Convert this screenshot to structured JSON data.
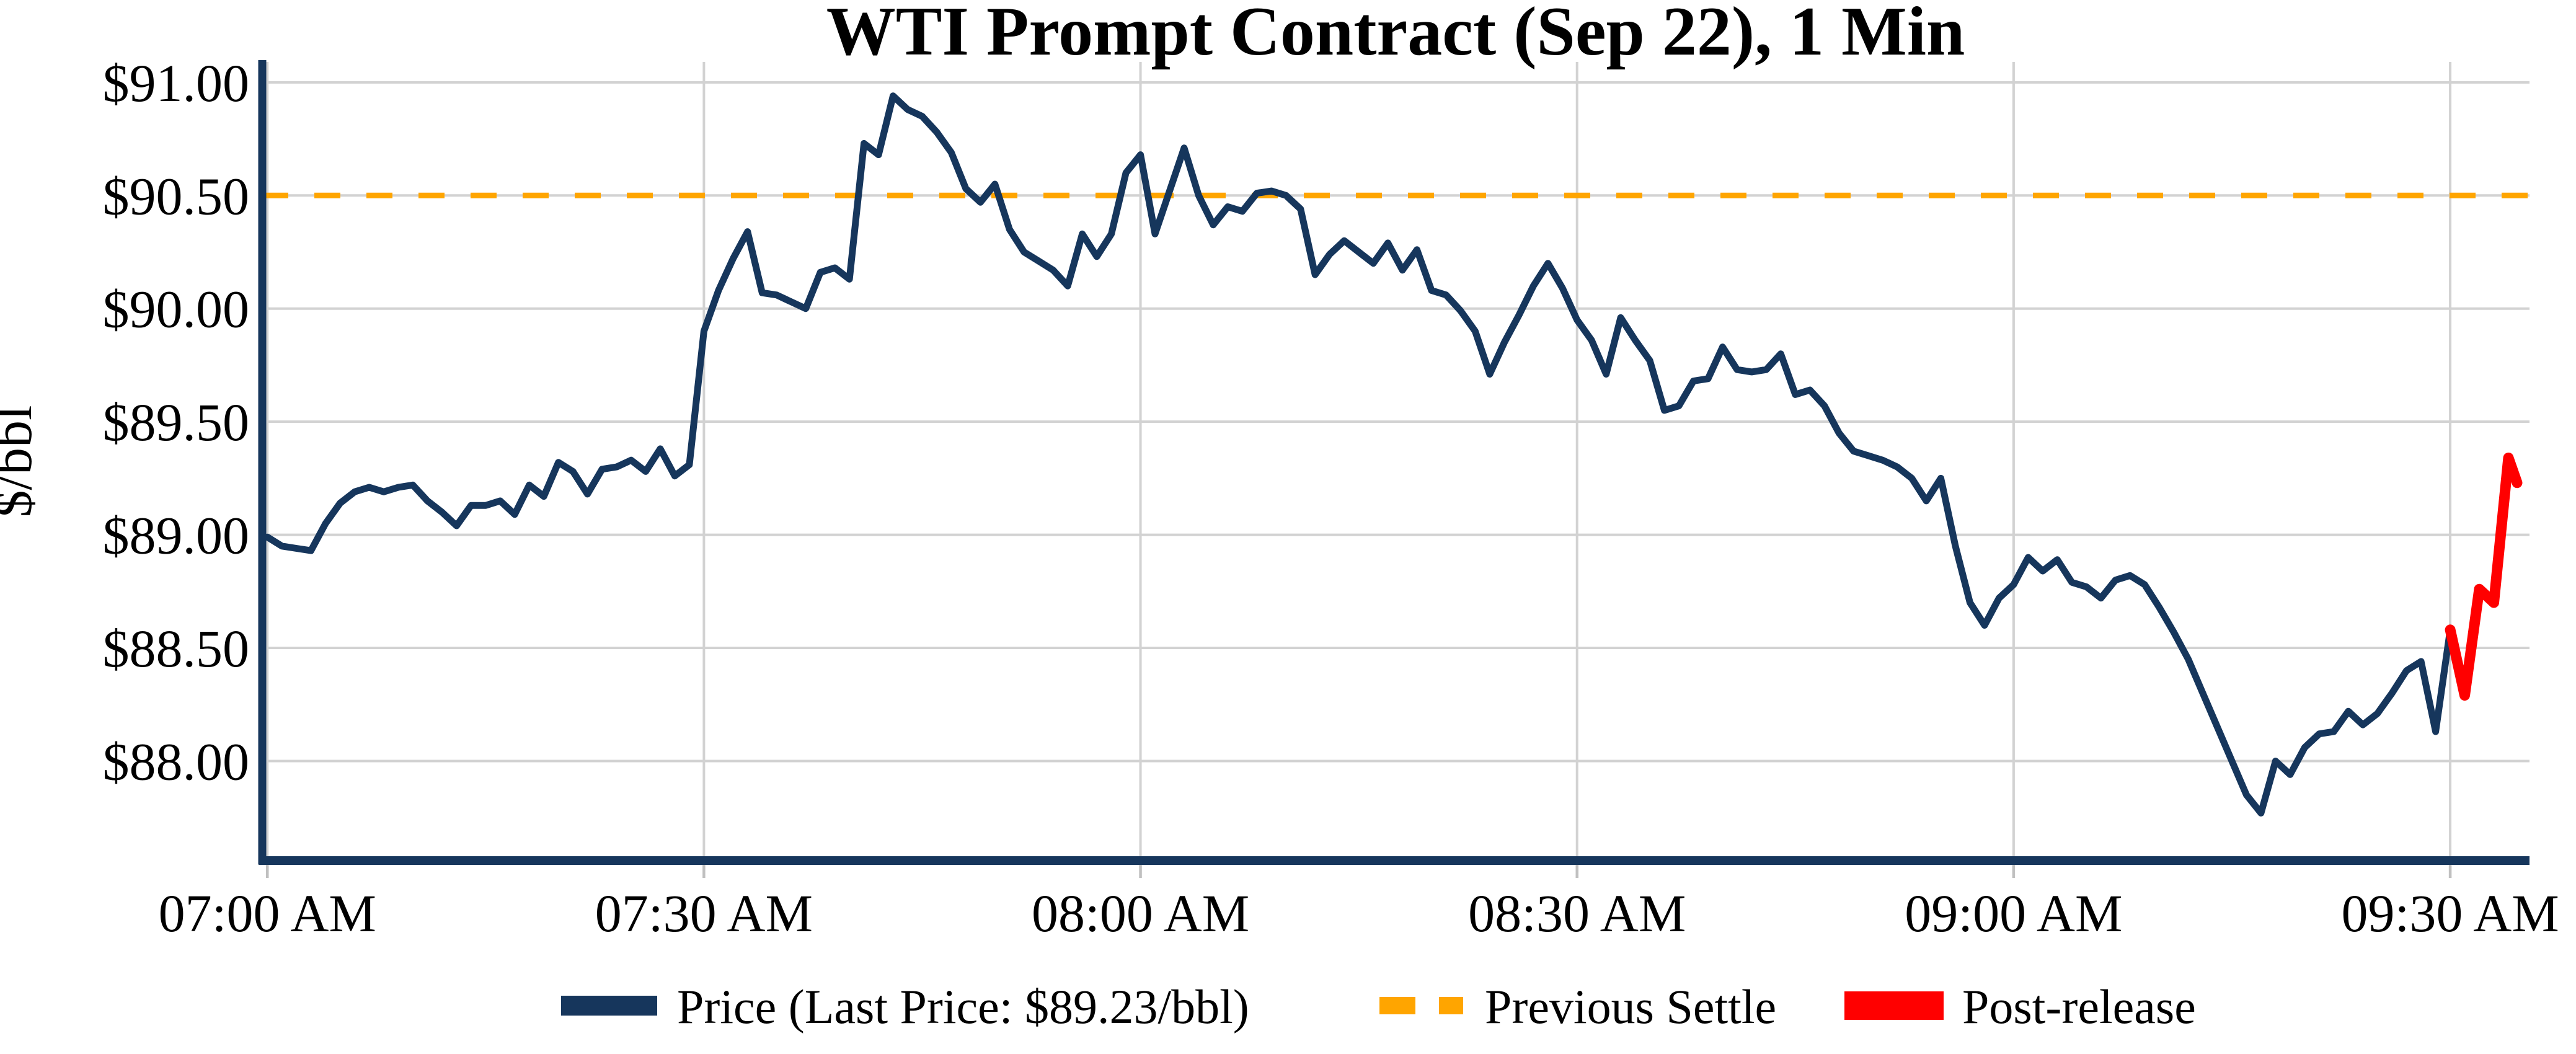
{
  "title": "WTI Prompt Contract (Sep 22), 1 Min",
  "chart_data": {
    "type": "line",
    "title": "WTI Prompt Contract (Sep 22), 1 Min",
    "xlabel": "",
    "ylabel": "$/bbl",
    "x_unit": "minutes after 07:00 AM",
    "xlim": [
      -0.35,
      155.45
    ],
    "ylim": [
      87.56,
      91.09
    ],
    "grid": true,
    "legend_position": "bottom-center",
    "previous_settle_value": 90.5,
    "last_price_value": 89.23,
    "x_ticks": [
      {
        "t": 0,
        "label": "07:00 AM"
      },
      {
        "t": 30,
        "label": "07:30 AM"
      },
      {
        "t": 60,
        "label": "08:00 AM"
      },
      {
        "t": 90,
        "label": "08:30 AM"
      },
      {
        "t": 120,
        "label": "09:00 AM"
      },
      {
        "t": 150,
        "label": "09:30 AM"
      }
    ],
    "y_ticks": [
      {
        "v": 91.0,
        "label": "$91.00"
      },
      {
        "v": 90.5,
        "label": "$90.50"
      },
      {
        "v": 90.0,
        "label": "$90.00"
      },
      {
        "v": 89.5,
        "label": "$89.50"
      },
      {
        "v": 89.0,
        "label": "$89.00"
      },
      {
        "v": 88.5,
        "label": "$88.50"
      },
      {
        "v": 88.0,
        "label": "$88.00"
      }
    ],
    "colors": {
      "price_line": "#16365c",
      "previous_settle": "#FFA500",
      "post_release": "#FF0000",
      "grid": "#d2d2d2",
      "tick": "#c0c0c0",
      "spine": "#16365c",
      "text": "#000000",
      "background": "#ffffff"
    },
    "series": [
      {
        "name": "Price (Last Price: $89.23/bbl)",
        "style": "solid",
        "color": "#16365c",
        "width": 11,
        "points": [
          [
            0,
            88.99
          ],
          [
            1,
            88.95
          ],
          [
            2,
            88.94
          ],
          [
            3,
            88.93
          ],
          [
            4,
            89.05
          ],
          [
            5,
            89.14
          ],
          [
            6,
            89.19
          ],
          [
            7,
            89.21
          ],
          [
            8,
            89.19
          ],
          [
            9,
            89.21
          ],
          [
            10,
            89.22
          ],
          [
            11,
            89.15
          ],
          [
            12,
            89.1
          ],
          [
            13,
            89.04
          ],
          [
            14,
            89.13
          ],
          [
            15,
            89.13
          ],
          [
            16,
            89.15
          ],
          [
            17,
            89.09
          ],
          [
            18,
            89.22
          ],
          [
            19,
            89.17
          ],
          [
            20,
            89.32
          ],
          [
            21,
            89.28
          ],
          [
            22,
            89.18
          ],
          [
            23,
            89.29
          ],
          [
            24,
            89.3
          ],
          [
            25,
            89.33
          ],
          [
            26,
            89.28
          ],
          [
            27,
            89.38
          ],
          [
            28,
            89.26
          ],
          [
            29,
            89.31
          ],
          [
            30,
            89.9
          ],
          [
            31,
            90.08
          ],
          [
            32,
            90.22
          ],
          [
            33,
            90.34
          ],
          [
            34,
            90.07
          ],
          [
            35,
            90.06
          ],
          [
            36,
            90.03
          ],
          [
            37,
            90.0
          ],
          [
            38,
            90.16
          ],
          [
            39,
            90.18
          ],
          [
            40,
            90.13
          ],
          [
            41,
            90.73
          ],
          [
            42,
            90.68
          ],
          [
            43,
            90.94
          ],
          [
            44,
            90.88
          ],
          [
            45,
            90.85
          ],
          [
            46,
            90.78
          ],
          [
            47,
            90.69
          ],
          [
            48,
            90.53
          ],
          [
            49,
            90.47
          ],
          [
            50,
            90.55
          ],
          [
            51,
            90.35
          ],
          [
            52,
            90.25
          ],
          [
            53,
            90.21
          ],
          [
            54,
            90.17
          ],
          [
            55,
            90.1
          ],
          [
            56,
            90.33
          ],
          [
            57,
            90.23
          ],
          [
            58,
            90.33
          ],
          [
            59,
            90.6
          ],
          [
            60,
            90.68
          ],
          [
            61,
            90.33
          ],
          [
            62,
            90.52
          ],
          [
            63,
            90.71
          ],
          [
            64,
            90.5
          ],
          [
            65,
            90.37
          ],
          [
            66,
            90.45
          ],
          [
            67,
            90.43
          ],
          [
            68,
            90.51
          ],
          [
            69,
            90.52
          ],
          [
            70,
            90.5
          ],
          [
            71,
            90.44
          ],
          [
            72,
            90.15
          ],
          [
            73,
            90.24
          ],
          [
            74,
            90.3
          ],
          [
            75,
            90.25
          ],
          [
            76,
            90.2
          ],
          [
            77,
            90.29
          ],
          [
            78,
            90.17
          ],
          [
            79,
            90.26
          ],
          [
            80,
            90.08
          ],
          [
            81,
            90.06
          ],
          [
            82,
            89.99
          ],
          [
            83,
            89.9
          ],
          [
            84,
            89.71
          ],
          [
            85,
            89.85
          ],
          [
            86,
            89.97
          ],
          [
            87,
            90.1
          ],
          [
            88,
            90.2
          ],
          [
            89,
            90.09
          ],
          [
            90,
            89.95
          ],
          [
            91,
            89.86
          ],
          [
            92,
            89.71
          ],
          [
            93,
            89.96
          ],
          [
            94,
            89.86
          ],
          [
            95,
            89.77
          ],
          [
            96,
            89.55
          ],
          [
            97,
            89.57
          ],
          [
            98,
            89.68
          ],
          [
            99,
            89.69
          ],
          [
            100,
            89.83
          ],
          [
            101,
            89.73
          ],
          [
            102,
            89.72
          ],
          [
            103,
            89.73
          ],
          [
            104,
            89.8
          ],
          [
            105,
            89.62
          ],
          [
            106,
            89.64
          ],
          [
            107,
            89.57
          ],
          [
            108,
            89.45
          ],
          [
            109,
            89.37
          ],
          [
            110,
            89.35
          ],
          [
            111,
            89.33
          ],
          [
            112,
            89.3
          ],
          [
            113,
            89.25
          ],
          [
            114,
            89.15
          ],
          [
            115,
            89.25
          ],
          [
            116,
            88.95
          ],
          [
            117,
            88.7
          ],
          [
            118,
            88.6
          ],
          [
            119,
            88.72
          ],
          [
            120,
            88.78
          ],
          [
            121,
            88.9
          ],
          [
            122,
            88.84
          ],
          [
            123,
            88.89
          ],
          [
            124,
            88.79
          ],
          [
            125,
            88.77
          ],
          [
            126,
            88.72
          ],
          [
            127,
            88.8
          ],
          [
            128,
            88.82
          ],
          [
            129,
            88.78
          ],
          [
            130,
            88.68
          ],
          [
            131,
            88.57
          ],
          [
            132,
            88.45
          ],
          [
            133,
            88.3
          ],
          [
            134,
            88.15
          ],
          [
            135,
            88.0
          ],
          [
            136,
            87.85
          ],
          [
            137,
            87.77
          ],
          [
            138,
            88.0
          ],
          [
            139,
            87.94
          ],
          [
            140,
            88.06
          ],
          [
            141,
            88.12
          ],
          [
            142,
            88.13
          ],
          [
            143,
            88.22
          ],
          [
            144,
            88.16
          ],
          [
            145,
            88.21
          ],
          [
            146,
            88.3
          ],
          [
            147,
            88.4
          ],
          [
            148,
            88.44
          ],
          [
            149,
            88.13
          ],
          [
            150,
            88.58
          ]
        ]
      },
      {
        "name": "Previous Settle",
        "style": "dashed",
        "color": "#FFA500",
        "width": 9,
        "value": 90.5
      },
      {
        "name": "Post-release",
        "style": "solid",
        "color": "#FF0000",
        "width": 17,
        "points": [
          [
            150,
            88.58
          ],
          [
            151,
            88.29
          ],
          [
            152,
            88.76
          ],
          [
            153,
            88.7
          ],
          [
            154,
            89.34
          ],
          [
            154.6,
            89.23
          ]
        ]
      }
    ],
    "legend": {
      "items": [
        {
          "label": "Price (Last Price: $89.23/bbl)",
          "swatch": "line-navy"
        },
        {
          "label": "Previous Settle",
          "swatch": "dashes-orange"
        },
        {
          "label": "Post-release",
          "swatch": "line-red-thick"
        }
      ]
    }
  }
}
